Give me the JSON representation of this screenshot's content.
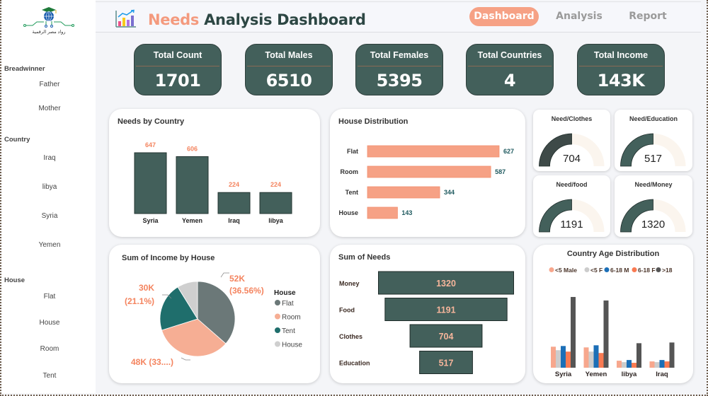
{
  "sidebar": {
    "logo_caption": "رواد مصر الرقمية",
    "slicers": [
      {
        "title": "Breadwinner",
        "items": [
          "Father",
          "Mother"
        ]
      },
      {
        "title": "Country",
        "items": [
          "Iraq",
          "libya",
          "Syria",
          "Yemen"
        ]
      },
      {
        "title": "House",
        "items": [
          "Flat",
          "House",
          "Room",
          "Tent"
        ]
      }
    ]
  },
  "header": {
    "title_accent": "Needs",
    "title_rest": "Analysis Dashboard",
    "icon": "bar-chart-trend-icon",
    "nav": [
      {
        "label": "Dashboard",
        "active": true
      },
      {
        "label": "Analysis",
        "active": false
      },
      {
        "label": "Report",
        "active": false
      }
    ]
  },
  "kpis": [
    {
      "label": "Total Count",
      "value": "1701"
    },
    {
      "label": "Total Males",
      "value": "6510"
    },
    {
      "label": "Total Females",
      "value": "5395"
    },
    {
      "label": "Total Countries",
      "value": "4"
    },
    {
      "label": "Total Income",
      "value": "143K"
    }
  ],
  "colors": {
    "dark_green": "#43605b",
    "salmon": "#f6a185",
    "accent_label": "#f4845f",
    "teal_label": "#1f5a5f",
    "gauge_track": "#fbf5ee",
    "pie_flat": "#6b7878",
    "pie_room": "#f6ae94",
    "pie_tent": "#1f6e6c",
    "pie_house": "#cfcfcf",
    "age_lt5m": "#f7a78d",
    "age_lt5f": "#cccccc",
    "age_6_18m": "#1c6fb7",
    "age_6_18f": "#f97a52",
    "age_gt18": "#555555"
  },
  "chart_data": [
    {
      "id": "needs_by_country",
      "type": "bar",
      "title": "Needs by Country",
      "categories": [
        "Syria",
        "Yemen",
        "Iraq",
        "libya"
      ],
      "values": [
        647,
        606,
        224,
        224
      ],
      "xlabel": "",
      "ylabel": "",
      "ylim": [
        0,
        700
      ],
      "grid": false
    },
    {
      "id": "house_distribution",
      "type": "bar",
      "orientation": "horizontal",
      "title": "House Distribution",
      "categories": [
        "Flat",
        "Room",
        "Tent",
        "House"
      ],
      "values": [
        627,
        587,
        344,
        143
      ],
      "xlim": [
        0,
        650
      ],
      "grid": false
    },
    {
      "id": "gauges",
      "type": "gauge",
      "items": [
        {
          "title": "Need/Clothes",
          "value": 704,
          "max": 1408
        },
        {
          "title": "Need/Education",
          "value": 517,
          "max": 1034
        },
        {
          "title": "Need/food",
          "value": 1191,
          "max": 2382
        },
        {
          "title": "Need/Money",
          "value": 1320,
          "max": 2640
        }
      ]
    },
    {
      "id": "income_by_house",
      "type": "pie",
      "title": "Sum of Income by House",
      "legend_title": "House",
      "legend_position": "right",
      "categories": [
        "Flat",
        "Room",
        "Tent",
        "House"
      ],
      "values": [
        52,
        48,
        30,
        12.6
      ],
      "unit": "K",
      "labels": [
        {
          "category": "Flat",
          "text_line1": "52K",
          "text_line2": "(36.56%)"
        },
        {
          "category": "Room",
          "text_line1": "48K (33....)",
          "text_line2": ""
        },
        {
          "category": "Tent",
          "text_line1": "30K",
          "text_line2": "(21.1%)"
        }
      ]
    },
    {
      "id": "sum_of_needs",
      "type": "funnel",
      "title": "Sum of Needs",
      "categories": [
        "Money",
        "Food",
        "Clothes",
        "Education"
      ],
      "values": [
        1320,
        1191,
        704,
        517
      ]
    },
    {
      "id": "country_age_distribution",
      "type": "bar",
      "title": "Country Age Distribution",
      "legend_position": "top",
      "categories": [
        "Syria",
        "Yemen",
        "libya",
        "Iraq"
      ],
      "series": [
        {
          "name": "<5 Male",
          "values": [
            30,
            29,
            10,
            9
          ]
        },
        {
          "name": "<5 F",
          "values": [
            25,
            23,
            8,
            8
          ]
        },
        {
          "name": "6-18 M",
          "values": [
            31,
            32,
            11,
            11
          ]
        },
        {
          "name": "6-18 F",
          "values": [
            23,
            21,
            7,
            9
          ]
        },
        {
          "name": ">18",
          "values": [
            101,
            96,
            35,
            36
          ]
        }
      ],
      "ylim": [
        0,
        105
      ],
      "grid": false
    }
  ]
}
